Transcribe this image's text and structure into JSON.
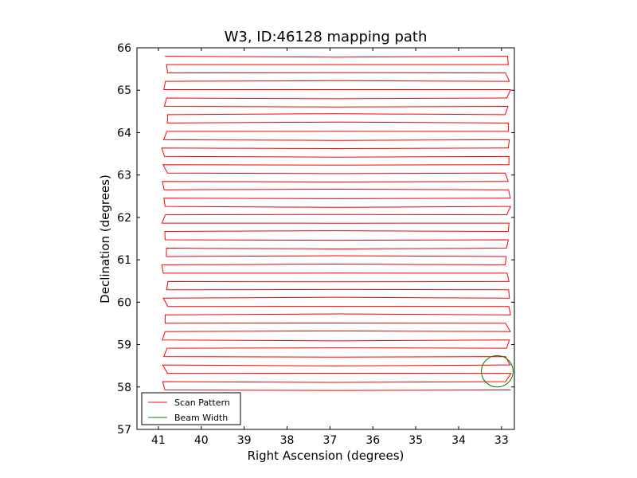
{
  "chart_data": {
    "type": "line",
    "title": "W3, ID:46128 mapping path",
    "xlabel": "Right Ascension (degrees)",
    "ylabel": "Declination (degrees)",
    "xlim": [
      41.5,
      32.7
    ],
    "ylim": [
      57,
      66
    ],
    "xticks": [
      41,
      40,
      39,
      38,
      37,
      36,
      35,
      34,
      33
    ],
    "yticks": [
      57,
      58,
      59,
      60,
      61,
      62,
      63,
      64,
      65,
      66
    ],
    "grid": false,
    "legend_position": "lower-left",
    "series": [
      {
        "name": "Scan Pattern",
        "color": "#ff0000",
        "scan_rows": {
          "dec_start": 65.8,
          "dec_end": 57.93,
          "num_rows": 41,
          "ra_west": 40.85,
          "ra_east": 32.85
        }
      },
      {
        "name": "Beam Width",
        "color": "#008000",
        "circle": {
          "center_ra": 33.1,
          "center_dec": 58.37,
          "radius_deg": 0.37
        }
      }
    ]
  }
}
